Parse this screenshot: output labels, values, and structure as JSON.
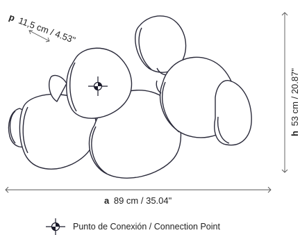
{
  "depth": {
    "symbol": "p",
    "value": "11,5 cm / 4.53\""
  },
  "width": {
    "symbol": "a",
    "value": "89 cm / 35.04\""
  },
  "height": {
    "symbol": "h",
    "value": "53 cm / 20.87\""
  },
  "legend": {
    "label": "Punto de Conexión / Connection Point",
    "icon": "connection-point-icon"
  },
  "colors": {
    "line": "#2a2a3a",
    "dim": "#555555",
    "fill": "#ffffff"
  }
}
